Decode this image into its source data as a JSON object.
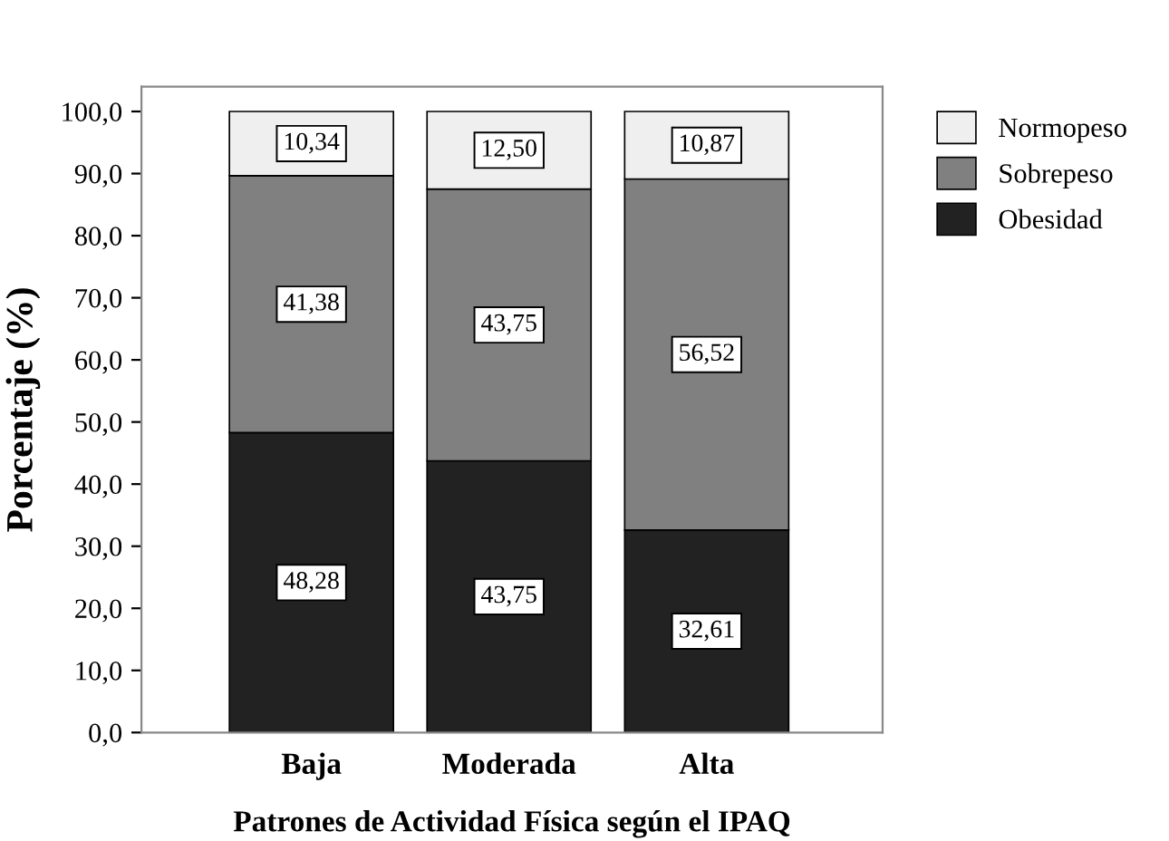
{
  "chart_data": {
    "type": "bar",
    "stacked": true,
    "xlabel": "Patrones de Actividad Física según el IPAQ",
    "ylabel": "Porcentaje (%)",
    "categories": [
      "Baja",
      "Moderada",
      "Alta"
    ],
    "series": [
      {
        "name": "Obesidad",
        "color": "#222222",
        "values": [
          48.28,
          43.75,
          32.61
        ],
        "value_labels": [
          "48,28",
          "43,75",
          "32,61"
        ]
      },
      {
        "name": "Sobrepeso",
        "color": "#808080",
        "values": [
          41.38,
          43.75,
          56.52
        ],
        "value_labels": [
          "41,38",
          "43,75",
          "56,52"
        ]
      },
      {
        "name": "Normopeso",
        "color": "#efefef",
        "values": [
          10.34,
          12.5,
          10.87
        ],
        "value_labels": [
          "10,34",
          "12,50",
          "10,87"
        ]
      }
    ],
    "ylim": [
      0,
      104
    ],
    "yticks": [
      {
        "value": 0,
        "label": "0,0"
      },
      {
        "value": 10,
        "label": "10,0"
      },
      {
        "value": 20,
        "label": "20,0"
      },
      {
        "value": 30,
        "label": "30,0"
      },
      {
        "value": 40,
        "label": "40,0"
      },
      {
        "value": 50,
        "label": "50,0"
      },
      {
        "value": 60,
        "label": "60,0"
      },
      {
        "value": 70,
        "label": "70,0"
      },
      {
        "value": 80,
        "label": "80,0"
      },
      {
        "value": 90,
        "label": "90,0"
      },
      {
        "value": 100,
        "label": "100,0"
      }
    ],
    "grid": false,
    "legend": "right"
  }
}
